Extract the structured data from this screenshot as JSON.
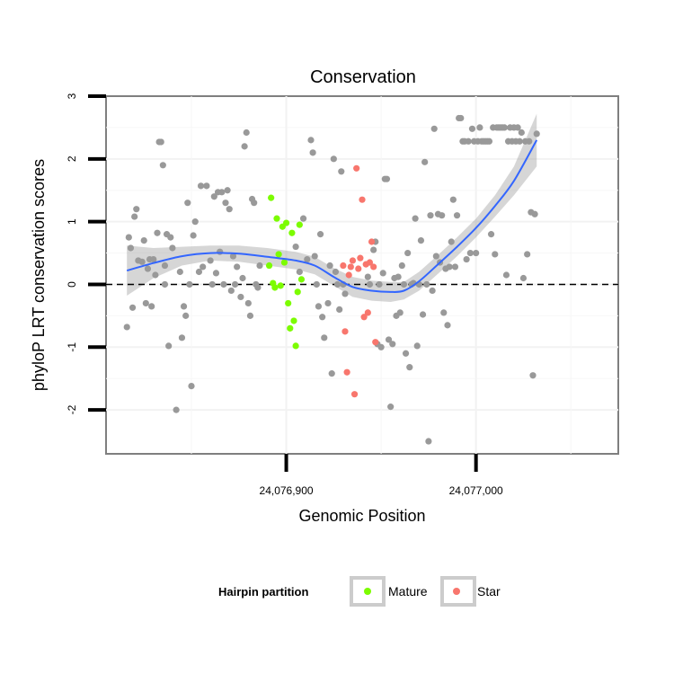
{
  "chart_data": {
    "type": "scatter",
    "title": "Conservation",
    "xlabel": "Genomic Position",
    "ylabel": "phyloP LRT conservation scores",
    "xlim": [
      24076805,
      24077075
    ],
    "ylim": [
      -2.7,
      3.0
    ],
    "x_ticks": [
      24076900,
      24077000
    ],
    "x_tick_labels": [
      "24,076,900",
      "24,077,000"
    ],
    "y_ticks": [
      -2,
      -1,
      0,
      1,
      2,
      3
    ],
    "y_tick_labels": [
      "-2",
      "-1",
      "0",
      "1",
      "2",
      "3"
    ],
    "grid": true,
    "reference_line": {
      "y": 0,
      "style": "dashed"
    },
    "legend": {
      "title": "Hairpin partition",
      "placement": "bottom",
      "entries": [
        {
          "label": "Mature",
          "color": "#7cfc00"
        },
        {
          "label": "Star",
          "color": "#f8766d"
        }
      ]
    },
    "series": [
      {
        "role": "other positions",
        "color": "#999999",
        "points": [
          [
            24076816,
            -0.68
          ],
          [
            24076817,
            0.75
          ],
          [
            24076818,
            0.58
          ],
          [
            24076819,
            -0.37
          ],
          [
            24076820,
            1.08
          ],
          [
            24076821,
            1.2
          ],
          [
            24076822,
            0.38
          ],
          [
            24076824,
            0.36
          ],
          [
            24076825,
            0.7
          ],
          [
            24076826,
            -0.3
          ],
          [
            24076827,
            0.25
          ],
          [
            24076828,
            0.4
          ],
          [
            24076829,
            -0.35
          ],
          [
            24076830,
            0.4
          ],
          [
            24076831,
            0.15
          ],
          [
            24076832,
            0.82
          ],
          [
            24076833,
            2.27
          ],
          [
            24076834,
            2.27
          ],
          [
            24076835,
            1.9
          ],
          [
            24076836,
            0.3
          ],
          [
            24076836,
            0.0
          ],
          [
            24076837,
            0.8
          ],
          [
            24076838,
            -0.98
          ],
          [
            24076839,
            0.75
          ],
          [
            24076840,
            0.58
          ],
          [
            24076842,
            -2.0
          ],
          [
            24076844,
            0.2
          ],
          [
            24076845,
            -0.85
          ],
          [
            24076846,
            -0.35
          ],
          [
            24076847,
            -0.5
          ],
          [
            24076848,
            1.3
          ],
          [
            24076849,
            0.0
          ],
          [
            24076850,
            -1.62
          ],
          [
            24076851,
            0.78
          ],
          [
            24076852,
            1.0
          ],
          [
            24076854,
            0.2
          ],
          [
            24076855,
            1.57
          ],
          [
            24076856,
            0.28
          ],
          [
            24076858,
            1.57
          ],
          [
            24076860,
            0.38
          ],
          [
            24076861,
            0.0
          ],
          [
            24076862,
            1.4
          ],
          [
            24076863,
            0.18
          ],
          [
            24076864,
            1.47
          ],
          [
            24076865,
            0.52
          ],
          [
            24076866,
            1.47
          ],
          [
            24076867,
            0.0
          ],
          [
            24076868,
            1.3
          ],
          [
            24076869,
            1.5
          ],
          [
            24076870,
            1.2
          ],
          [
            24076871,
            -0.1
          ],
          [
            24076872,
            0.45
          ],
          [
            24076873,
            0.0
          ],
          [
            24076874,
            0.28
          ],
          [
            24076876,
            -0.2
          ],
          [
            24076877,
            0.1
          ],
          [
            24076878,
            2.2
          ],
          [
            24076879,
            2.42
          ],
          [
            24076880,
            -0.3
          ],
          [
            24076881,
            -0.5
          ],
          [
            24076882,
            1.36
          ],
          [
            24076883,
            1.3
          ],
          [
            24076884,
            0.0
          ],
          [
            24076885,
            -0.05
          ],
          [
            24076886,
            0.3
          ],
          [
            24076905,
            0.6
          ],
          [
            24076907,
            0.2
          ],
          [
            24076909,
            1.05
          ],
          [
            24076911,
            0.4
          ],
          [
            24076913,
            2.3
          ],
          [
            24076914,
            2.1
          ],
          [
            24076915,
            0.45
          ],
          [
            24076916,
            0.0
          ],
          [
            24076917,
            -0.35
          ],
          [
            24076918,
            0.8
          ],
          [
            24076919,
            -0.52
          ],
          [
            24076920,
            -0.85
          ],
          [
            24076922,
            -0.3
          ],
          [
            24076923,
            0.3
          ],
          [
            24076924,
            -1.42
          ],
          [
            24076925,
            2.0
          ],
          [
            24076926,
            0.2
          ],
          [
            24076927,
            0.0
          ],
          [
            24076928,
            -0.4
          ],
          [
            24076929,
            1.8
          ],
          [
            24076930,
            0.0
          ],
          [
            24076931,
            -0.15
          ],
          [
            24076943,
            0.12
          ],
          [
            24076944,
            0.0
          ],
          [
            24076946,
            0.55
          ],
          [
            24076947,
            0.68
          ],
          [
            24076948,
            -0.95
          ],
          [
            24076949,
            0.0
          ],
          [
            24076950,
            -1.0
          ],
          [
            24076951,
            0.18
          ],
          [
            24076952,
            1.68
          ],
          [
            24076953,
            1.68
          ],
          [
            24076954,
            -0.88
          ],
          [
            24076955,
            -1.95
          ],
          [
            24076956,
            -0.95
          ],
          [
            24076957,
            0.1
          ],
          [
            24076958,
            -0.5
          ],
          [
            24076959,
            0.12
          ],
          [
            24076960,
            -0.45
          ],
          [
            24076961,
            0.3
          ],
          [
            24076962,
            0.0
          ],
          [
            24076963,
            -1.1
          ],
          [
            24076964,
            0.5
          ],
          [
            24076965,
            -1.32
          ],
          [
            24076966,
            0.0
          ],
          [
            24076967,
            0.02
          ],
          [
            24076968,
            1.05
          ],
          [
            24076969,
            -0.98
          ],
          [
            24076970,
            0.0
          ],
          [
            24076971,
            0.7
          ],
          [
            24076972,
            -0.48
          ],
          [
            24076973,
            1.95
          ],
          [
            24076974,
            0.0
          ],
          [
            24076975,
            -2.5
          ],
          [
            24076976,
            1.1
          ],
          [
            24076977,
            -0.1
          ],
          [
            24076978,
            2.48
          ],
          [
            24076979,
            0.45
          ],
          [
            24076980,
            1.12
          ],
          [
            24076981,
            0.35
          ],
          [
            24076982,
            1.1
          ],
          [
            24076983,
            -0.45
          ],
          [
            24076984,
            0.25
          ],
          [
            24076985,
            -0.65
          ],
          [
            24076986,
            0.28
          ],
          [
            24076987,
            0.68
          ],
          [
            24076988,
            1.35
          ],
          [
            24076989,
            0.28
          ],
          [
            24076990,
            1.1
          ],
          [
            24076991,
            2.65
          ],
          [
            24076992,
            2.65
          ],
          [
            24076993,
            2.28
          ],
          [
            24076994,
            2.28
          ],
          [
            24076995,
            0.4
          ],
          [
            24076996,
            2.28
          ],
          [
            24076997,
            0.5
          ],
          [
            24076998,
            2.48
          ],
          [
            24076999,
            2.28
          ],
          [
            24077000,
            0.5
          ],
          [
            24077001,
            2.28
          ],
          [
            24077002,
            2.5
          ],
          [
            24077003,
            2.28
          ],
          [
            24077004,
            2.28
          ],
          [
            24077005,
            2.28
          ],
          [
            24077006,
            2.28
          ],
          [
            24077007,
            2.28
          ],
          [
            24077008,
            0.8
          ],
          [
            24077009,
            2.5
          ],
          [
            24077010,
            0.48
          ],
          [
            24077011,
            2.5
          ],
          [
            24077012,
            2.5
          ],
          [
            24077013,
            2.5
          ],
          [
            24077014,
            2.5
          ],
          [
            24077015,
            2.5
          ],
          [
            24077016,
            0.15
          ],
          [
            24077017,
            2.28
          ],
          [
            24077018,
            2.5
          ],
          [
            24077019,
            2.28
          ],
          [
            24077020,
            2.5
          ],
          [
            24077021,
            2.28
          ],
          [
            24077022,
            2.5
          ],
          [
            24077023,
            2.28
          ],
          [
            24077024,
            2.42
          ],
          [
            24077025,
            0.1
          ],
          [
            24077026,
            2.28
          ],
          [
            24077027,
            0.48
          ],
          [
            24077028,
            2.28
          ],
          [
            24077029,
            1.15
          ],
          [
            24077030,
            -1.45
          ],
          [
            24077031,
            1.12
          ],
          [
            24077032,
            2.4
          ]
        ]
      },
      {
        "name": "Mature",
        "color": "#7cfc00",
        "points": [
          [
            24076891,
            0.3
          ],
          [
            24076892,
            1.38
          ],
          [
            24076893,
            0.02
          ],
          [
            24076894,
            -0.05
          ],
          [
            24076895,
            1.05
          ],
          [
            24076896,
            0.48
          ],
          [
            24076897,
            -0.02
          ],
          [
            24076898,
            0.92
          ],
          [
            24076899,
            0.35
          ],
          [
            24076900,
            0.98
          ],
          [
            24076901,
            -0.3
          ],
          [
            24076902,
            -0.7
          ],
          [
            24076903,
            0.82
          ],
          [
            24076904,
            -0.58
          ],
          [
            24076905,
            -0.98
          ],
          [
            24076906,
            -0.12
          ],
          [
            24076907,
            0.95
          ],
          [
            24076908,
            0.08
          ]
        ]
      },
      {
        "name": "Star",
        "color": "#f8766d",
        "points": [
          [
            24076930,
            0.3
          ],
          [
            24076931,
            -0.75
          ],
          [
            24076932,
            -1.4
          ],
          [
            24076933,
            0.15
          ],
          [
            24076934,
            0.28
          ],
          [
            24076935,
            0.38
          ],
          [
            24076936,
            -1.75
          ],
          [
            24076937,
            1.85
          ],
          [
            24076938,
            0.25
          ],
          [
            24076939,
            0.42
          ],
          [
            24076940,
            1.35
          ],
          [
            24076941,
            -0.52
          ],
          [
            24076942,
            0.32
          ],
          [
            24076943,
            -0.45
          ],
          [
            24076944,
            0.35
          ],
          [
            24076945,
            0.68
          ],
          [
            24076946,
            0.28
          ],
          [
            24076947,
            -0.92
          ]
        ]
      },
      {
        "role": "smooth",
        "color": "#3366ff",
        "points": [
          [
            24076816,
            0.22
          ],
          [
            24076830,
            0.34
          ],
          [
            24076845,
            0.45
          ],
          [
            24076860,
            0.5
          ],
          [
            24076875,
            0.49
          ],
          [
            24076890,
            0.44
          ],
          [
            24076905,
            0.38
          ],
          [
            24076915,
            0.3
          ],
          [
            24076925,
            0.12
          ],
          [
            24076935,
            -0.04
          ],
          [
            24076945,
            -0.1
          ],
          [
            24076955,
            -0.12
          ],
          [
            24076962,
            -0.1
          ],
          [
            24076970,
            0.05
          ],
          [
            24076980,
            0.32
          ],
          [
            24076990,
            0.6
          ],
          [
            24077000,
            0.9
          ],
          [
            24077010,
            1.25
          ],
          [
            24077020,
            1.65
          ],
          [
            24077032,
            2.3
          ]
        ],
        "band": [
          [
            24076816,
            0.62,
            -0.18
          ],
          [
            24076830,
            0.58,
            0.1
          ],
          [
            24076845,
            0.6,
            0.3
          ],
          [
            24076860,
            0.62,
            0.38
          ],
          [
            24076875,
            0.62,
            0.36
          ],
          [
            24076890,
            0.58,
            0.3
          ],
          [
            24076905,
            0.52,
            0.24
          ],
          [
            24076915,
            0.44,
            0.16
          ],
          [
            24076925,
            0.26,
            -0.02
          ],
          [
            24076935,
            0.12,
            -0.2
          ],
          [
            24076945,
            0.06,
            -0.26
          ],
          [
            24076955,
            0.04,
            -0.28
          ],
          [
            24076962,
            0.04,
            -0.24
          ],
          [
            24076970,
            0.2,
            -0.1
          ],
          [
            24076980,
            0.47,
            0.17
          ],
          [
            24076990,
            0.75,
            0.45
          ],
          [
            24077000,
            1.05,
            0.75
          ],
          [
            24077010,
            1.42,
            1.08
          ],
          [
            24077020,
            1.88,
            1.42
          ],
          [
            24077032,
            2.72,
            1.88
          ]
        ]
      }
    ]
  }
}
